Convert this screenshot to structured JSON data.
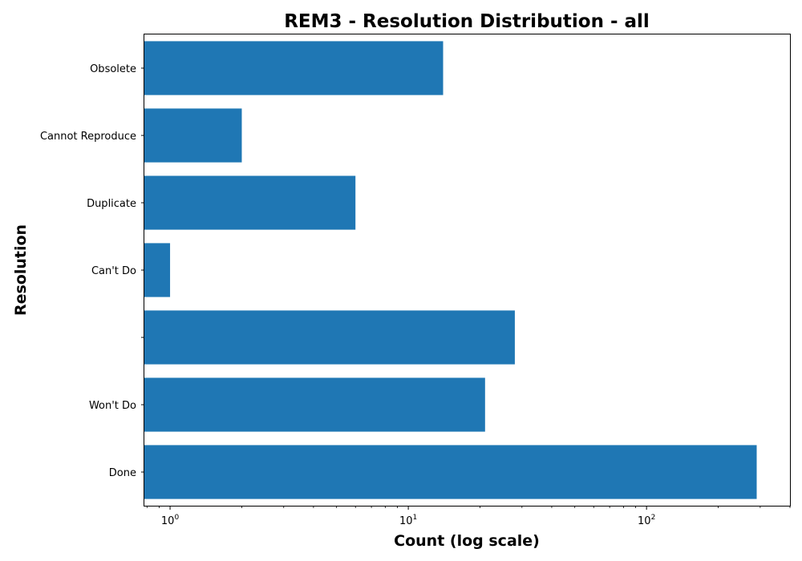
{
  "chart_data": {
    "type": "bar",
    "orientation": "horizontal",
    "title": "REM3 - Resolution Distribution - all",
    "xlabel": "Count (log scale)",
    "ylabel": "Resolution",
    "xscale": "log",
    "xlim": [
      0.78,
      400
    ],
    "x_ticks": [
      {
        "value": 1,
        "base": "10",
        "exp": "0"
      },
      {
        "value": 10,
        "base": "10",
        "exp": "1"
      },
      {
        "value": 100,
        "base": "10",
        "exp": "2"
      }
    ],
    "categories": [
      "Obsolete",
      "Cannot Reproduce",
      "Duplicate",
      "Can't Do",
      "",
      "Won't Do",
      "Done"
    ],
    "values": [
      14,
      2,
      6,
      1,
      28,
      21,
      290
    ],
    "bar_color": "#1f77b4",
    "grid": false
  }
}
